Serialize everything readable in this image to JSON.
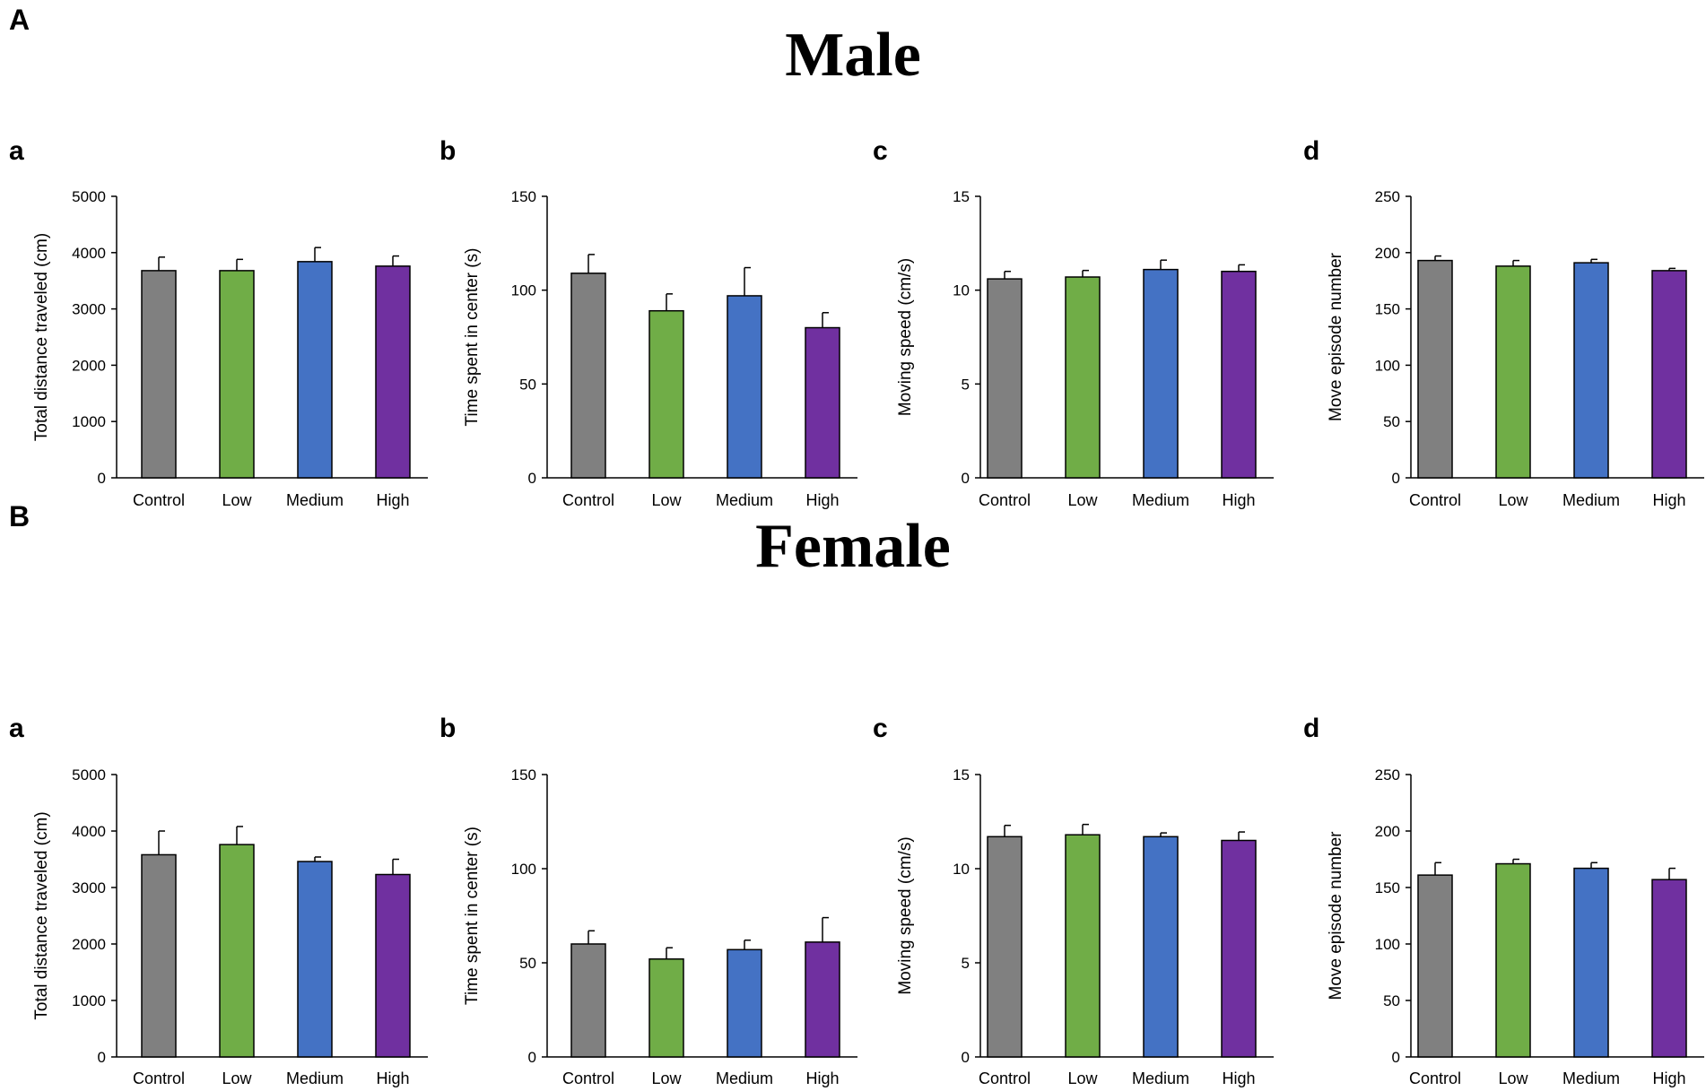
{
  "sections": [
    {
      "letter": "A",
      "title": "Male",
      "panels": [
        {
          "label": "a",
          "ylabel": "Total distance traveled (cm)",
          "ylim": [
            0,
            5000
          ],
          "yticks": [
            0,
            1000,
            2000,
            3000,
            4000,
            5000
          ]
        },
        {
          "label": "b",
          "ylabel": "Time spent in center (s)",
          "ylim": [
            0,
            150
          ],
          "yticks": [
            0,
            50,
            100,
            150
          ]
        },
        {
          "label": "c",
          "ylabel": "Moving speed (cm/s)",
          "ylim": [
            0,
            15
          ],
          "yticks": [
            0,
            5,
            10,
            15
          ]
        },
        {
          "label": "d",
          "ylabel": "Move episode number",
          "ylim": [
            0,
            250
          ],
          "yticks": [
            0,
            50,
            100,
            150,
            200,
            250
          ]
        }
      ]
    },
    {
      "letter": "B",
      "title": "Female",
      "panels": [
        {
          "label": "a",
          "ylabel": "Total distance traveled (cm)",
          "ylim": [
            0,
            5000
          ],
          "yticks": [
            0,
            1000,
            2000,
            3000,
            4000,
            5000
          ]
        },
        {
          "label": "b",
          "ylabel": "Time spent in center (s)",
          "ylim": [
            0,
            150
          ],
          "yticks": [
            0,
            50,
            100,
            150
          ]
        },
        {
          "label": "c",
          "ylabel": "Moving speed (cm/s)",
          "ylim": [
            0,
            15
          ],
          "yticks": [
            0,
            5,
            10,
            15
          ]
        },
        {
          "label": "d",
          "ylabel": "Move episode number",
          "ylim": [
            0,
            250
          ],
          "yticks": [
            0,
            50,
            100,
            150,
            200,
            250
          ]
        }
      ]
    }
  ],
  "colors": {
    "Control": "#808080",
    "Low": "#70ad47",
    "Medium": "#4472c4",
    "High": "#7030a0"
  },
  "chart_data": [
    {
      "type": "bar",
      "group": "Male",
      "panel": "a",
      "categories": [
        "Control",
        "Low",
        "Medium",
        "High"
      ],
      "values": [
        3680,
        3680,
        3840,
        3760
      ],
      "errors": [
        240,
        200,
        250,
        180
      ],
      "ylabel": "Total distance traveled (cm)",
      "ylim": [
        0,
        5000
      ]
    },
    {
      "type": "bar",
      "group": "Male",
      "panel": "b",
      "categories": [
        "Control",
        "Low",
        "Medium",
        "High"
      ],
      "values": [
        109,
        89,
        97,
        80
      ],
      "errors": [
        10,
        9,
        15,
        8
      ],
      "ylabel": "Time spent in center (s)",
      "ylim": [
        0,
        150
      ]
    },
    {
      "type": "bar",
      "group": "Male",
      "panel": "c",
      "categories": [
        "Control",
        "Low",
        "Medium",
        "High"
      ],
      "values": [
        10.6,
        10.7,
        11.1,
        11.0
      ],
      "errors": [
        0.4,
        0.35,
        0.5,
        0.35
      ],
      "ylabel": "Moving speed (cm/s)",
      "ylim": [
        0,
        15
      ]
    },
    {
      "type": "bar",
      "group": "Male",
      "panel": "d",
      "categories": [
        "Control",
        "Low",
        "Medium",
        "High"
      ],
      "values": [
        193,
        188,
        191,
        184
      ],
      "errors": [
        4,
        5,
        3,
        2
      ],
      "ylabel": "Move episode number",
      "ylim": [
        0,
        250
      ]
    },
    {
      "type": "bar",
      "group": "Female",
      "panel": "a",
      "categories": [
        "Control",
        "Low",
        "Medium",
        "High"
      ],
      "values": [
        3580,
        3760,
        3460,
        3230
      ],
      "errors": [
        420,
        320,
        80,
        270
      ],
      "ylabel": "Total distance traveled (cm)",
      "ylim": [
        0,
        5000
      ]
    },
    {
      "type": "bar",
      "group": "Female",
      "panel": "b",
      "categories": [
        "Control",
        "Low",
        "Medium",
        "High"
      ],
      "values": [
        60,
        52,
        57,
        61
      ],
      "errors": [
        7,
        6,
        5,
        13
      ],
      "ylabel": "Time spent in center (s)",
      "ylim": [
        0,
        150
      ]
    },
    {
      "type": "bar",
      "group": "Female",
      "panel": "c",
      "categories": [
        "Control",
        "Low",
        "Medium",
        "High"
      ],
      "values": [
        11.7,
        11.8,
        11.7,
        11.5
      ],
      "errors": [
        0.6,
        0.55,
        0.2,
        0.45
      ],
      "ylabel": "Moving speed (cm/s)",
      "ylim": [
        0,
        15
      ]
    },
    {
      "type": "bar",
      "group": "Female",
      "panel": "d",
      "categories": [
        "Control",
        "Low",
        "Medium",
        "High"
      ],
      "values": [
        161,
        171,
        167,
        157
      ],
      "errors": [
        11,
        4,
        5,
        10
      ],
      "ylabel": "Move episode number",
      "ylim": [
        0,
        250
      ]
    }
  ]
}
